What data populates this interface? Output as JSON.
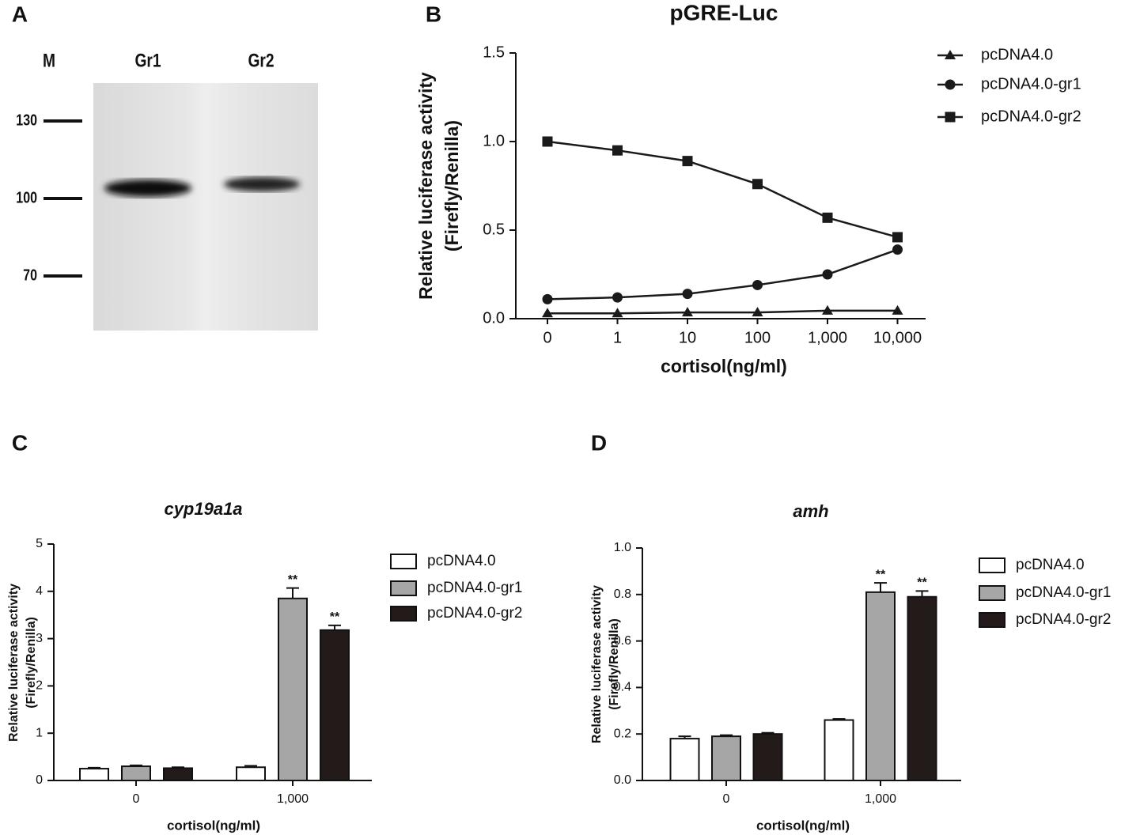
{
  "chart_data": [
    {
      "type": "blot",
      "panel": "A",
      "lanes": [
        "M",
        "Gr1",
        "Gr2"
      ],
      "markers": [
        130,
        100,
        70
      ]
    },
    {
      "type": "line",
      "panel": "B",
      "title": "pGRE-Luc",
      "ylabel": [
        "Relative luciferase activity",
        "(Firefly/Renilla)"
      ],
      "xlabel": "cortisol(ng/ml)",
      "categories": [
        "0",
        "1",
        "10",
        "100",
        "1,000",
        "10,000"
      ],
      "ylim": [
        0,
        1.5
      ],
      "yticks": [
        {
          "value": 0,
          "label": "0.0"
        },
        0.5,
        {
          "value": 1,
          "label": "1.0"
        },
        1.5
      ],
      "series": [
        {
          "name": "pcDNA4.0",
          "color": "#1a1a1a",
          "marker": "triangle",
          "values": [
            0.03,
            0.03,
            0.035,
            0.035,
            0.045,
            0.045
          ]
        },
        {
          "name": "pcDNA4.0-gr1",
          "color": "#1a1a1a",
          "marker": "circle",
          "values": [
            0.11,
            0.12,
            0.14,
            0.19,
            0.25,
            0.39
          ]
        },
        {
          "name": "pcDNA4.0-gr2",
          "color": "#1a1a1a",
          "marker": "square",
          "values": [
            1.0,
            0.95,
            0.89,
            0.76,
            0.57,
            0.46
          ]
        }
      ]
    },
    {
      "type": "bar",
      "panel": "C",
      "title": "cyp19a1a",
      "ylabel": [
        "Relative luciferase activity",
        "(Firefly/Renilla)"
      ],
      "xlabel": "cortisol(ng/ml)",
      "categories": [
        "0",
        "1,000"
      ],
      "ylim": [
        0,
        5
      ],
      "yticks": [
        0,
        1,
        2,
        3,
        4,
        5
      ],
      "series": [
        {
          "name": "pcDNA4.0",
          "color": "#ffffff",
          "values": [
            0.25,
            0.28
          ],
          "errors": [
            0.02,
            0.03
          ],
          "significance": [
            null,
            null
          ]
        },
        {
          "name": "pcDNA4.0-gr1",
          "color": "#a6a6a6",
          "values": [
            0.3,
            3.85
          ],
          "errors": [
            0.02,
            0.22
          ],
          "significance": [
            null,
            "**"
          ]
        },
        {
          "name": "pcDNA4.0-gr2",
          "color": "#231a1a",
          "values": [
            0.26,
            3.18
          ],
          "errors": [
            0.02,
            0.1
          ],
          "significance": [
            null,
            "**"
          ]
        }
      ]
    },
    {
      "type": "bar",
      "panel": "D",
      "title": "amh",
      "ylabel": [
        "Relative luciferase activity",
        "(Firefly/Renilla)"
      ],
      "xlabel": "cortisol(ng/ml)",
      "categories": [
        "0",
        "1,000"
      ],
      "ylim": [
        0,
        1
      ],
      "yticks": [
        {
          "value": 0,
          "label": "0.0"
        },
        0.2,
        0.4,
        0.6,
        0.8,
        {
          "value": 1,
          "label": "1.0"
        }
      ],
      "series": [
        {
          "name": "pcDNA4.0",
          "color": "#ffffff",
          "values": [
            0.18,
            0.26
          ],
          "errors": [
            0.01,
            0.005
          ],
          "significance": [
            null,
            null
          ]
        },
        {
          "name": "pcDNA4.0-gr1",
          "color": "#a6a6a6",
          "values": [
            0.19,
            0.81
          ],
          "errors": [
            0.005,
            0.04
          ],
          "significance": [
            null,
            "**"
          ]
        },
        {
          "name": "pcDNA4.0-gr2",
          "color": "#231a1a",
          "values": [
            0.2,
            0.79
          ],
          "errors": [
            0.005,
            0.025
          ],
          "significance": [
            null,
            "**"
          ]
        }
      ]
    }
  ]
}
